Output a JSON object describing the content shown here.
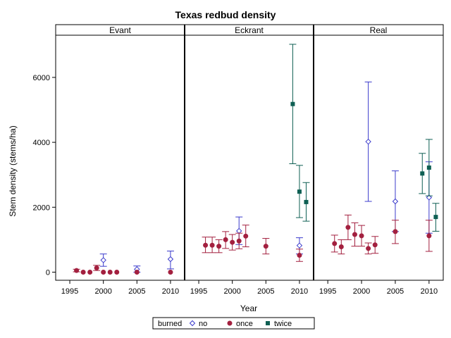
{
  "chart_data": {
    "type": "scatter",
    "title": "Texas redbud density",
    "xlabel": "Year",
    "ylabel": "Stem density (stems/ha)",
    "xlim": [
      1993,
      2012
    ],
    "ylim": [
      -250,
      7300
    ],
    "x_ticks": [
      1995,
      2000,
      2005,
      2010
    ],
    "y_ticks": [
      0,
      2000,
      4000,
      6000
    ],
    "panels": [
      "Evant",
      "Eckrant",
      "Real"
    ],
    "legend": {
      "title": "burned",
      "placement": "bottom-center",
      "entries": [
        {
          "label": "no",
          "marker": "diamond-open",
          "color": "#3b3bcc"
        },
        {
          "label": "once",
          "marker": "circle-filled",
          "color": "#a3203f"
        },
        {
          "label": "twice",
          "marker": "square-filled",
          "color": "#0e5f53"
        }
      ]
    },
    "series": [
      {
        "name": "no",
        "color": "#3b3bcc",
        "points": [
          {
            "panel": "Evant",
            "x": 2000,
            "y": 370,
            "lo": 180,
            "hi": 560
          },
          {
            "panel": "Evant",
            "x": 2005,
            "y": 90,
            "lo": 0,
            "hi": 190
          },
          {
            "panel": "Evant",
            "x": 2010,
            "y": 400,
            "lo": 100,
            "hi": 650
          },
          {
            "panel": "Eckrant",
            "x": 2001,
            "y": 1270,
            "lo": 850,
            "hi": 1700
          },
          {
            "panel": "Eckrant",
            "x": 2010,
            "y": 820,
            "lo": 560,
            "hi": 1060
          },
          {
            "panel": "Real",
            "x": 2001,
            "y": 4020,
            "lo": 2180,
            "hi": 5860
          },
          {
            "panel": "Real",
            "x": 2005,
            "y": 2180,
            "lo": 1250,
            "hi": 3120
          },
          {
            "panel": "Real",
            "x": 2010,
            "y": 2300,
            "lo": 1200,
            "hi": 3400
          }
        ]
      },
      {
        "name": "once",
        "color": "#a3203f",
        "points": [
          {
            "panel": "Evant",
            "x": 1996,
            "y": 50,
            "lo": 10,
            "hi": 90
          },
          {
            "panel": "Evant",
            "x": 1997,
            "y": 0,
            "lo": 0,
            "hi": 0
          },
          {
            "panel": "Evant",
            "x": 1998,
            "y": 0,
            "lo": 0,
            "hi": 0
          },
          {
            "panel": "Evant",
            "x": 1999,
            "y": 130,
            "lo": 50,
            "hi": 210
          },
          {
            "panel": "Evant",
            "x": 2000,
            "y": 0,
            "lo": 0,
            "hi": 0
          },
          {
            "panel": "Evant",
            "x": 2001,
            "y": 0,
            "lo": 0,
            "hi": 0
          },
          {
            "panel": "Evant",
            "x": 2002,
            "y": 0,
            "lo": 0,
            "hi": 0
          },
          {
            "panel": "Evant",
            "x": 2005,
            "y": 0,
            "lo": 0,
            "hi": 0
          },
          {
            "panel": "Evant",
            "x": 2010,
            "y": 0,
            "lo": 0,
            "hi": 0
          },
          {
            "panel": "Eckrant",
            "x": 1996,
            "y": 830,
            "lo": 600,
            "hi": 1080
          },
          {
            "panel": "Eckrant",
            "x": 1997,
            "y": 830,
            "lo": 600,
            "hi": 1080
          },
          {
            "panel": "Eckrant",
            "x": 1998,
            "y": 800,
            "lo": 600,
            "hi": 1000
          },
          {
            "panel": "Eckrant",
            "x": 1999,
            "y": 1000,
            "lo": 730,
            "hi": 1250
          },
          {
            "panel": "Eckrant",
            "x": 2000,
            "y": 920,
            "lo": 680,
            "hi": 1160
          },
          {
            "panel": "Eckrant",
            "x": 2001,
            "y": 960,
            "lo": 720,
            "hi": 1200
          },
          {
            "panel": "Eckrant",
            "x": 2002,
            "y": 1110,
            "lo": 780,
            "hi": 1450
          },
          {
            "panel": "Eckrant",
            "x": 2005,
            "y": 800,
            "lo": 560,
            "hi": 1040
          },
          {
            "panel": "Eckrant",
            "x": 2010,
            "y": 520,
            "lo": 330,
            "hi": 710
          },
          {
            "panel": "Real",
            "x": 1996,
            "y": 880,
            "lo": 620,
            "hi": 1140
          },
          {
            "panel": "Real",
            "x": 1997,
            "y": 780,
            "lo": 560,
            "hi": 1000
          },
          {
            "panel": "Real",
            "x": 1998,
            "y": 1380,
            "lo": 1000,
            "hi": 1760
          },
          {
            "panel": "Real",
            "x": 1999,
            "y": 1160,
            "lo": 800,
            "hi": 1520
          },
          {
            "panel": "Real",
            "x": 2000,
            "y": 1120,
            "lo": 800,
            "hi": 1440
          },
          {
            "panel": "Real",
            "x": 2001,
            "y": 730,
            "lo": 560,
            "hi": 900
          },
          {
            "panel": "Real",
            "x": 2002,
            "y": 840,
            "lo": 580,
            "hi": 1100
          },
          {
            "panel": "Real",
            "x": 2005,
            "y": 1250,
            "lo": 880,
            "hi": 1600
          },
          {
            "panel": "Real",
            "x": 2010,
            "y": 1120,
            "lo": 640,
            "hi": 1600
          }
        ]
      },
      {
        "name": "twice",
        "color": "#0e5f53",
        "points": [
          {
            "panel": "Eckrant",
            "x": 2009,
            "y": 5180,
            "lo": 3340,
            "hi": 7020
          },
          {
            "panel": "Eckrant",
            "x": 2010,
            "y": 2480,
            "lo": 1680,
            "hi": 3290
          },
          {
            "panel": "Eckrant",
            "x": 2011,
            "y": 2160,
            "lo": 1570,
            "hi": 2760
          },
          {
            "panel": "Real",
            "x": 2009,
            "y": 3040,
            "lo": 2420,
            "hi": 3660
          },
          {
            "panel": "Real",
            "x": 2010,
            "y": 3220,
            "lo": 2350,
            "hi": 4090
          },
          {
            "panel": "Real",
            "x": 2011,
            "y": 1700,
            "lo": 1260,
            "hi": 2120
          }
        ]
      }
    ]
  }
}
